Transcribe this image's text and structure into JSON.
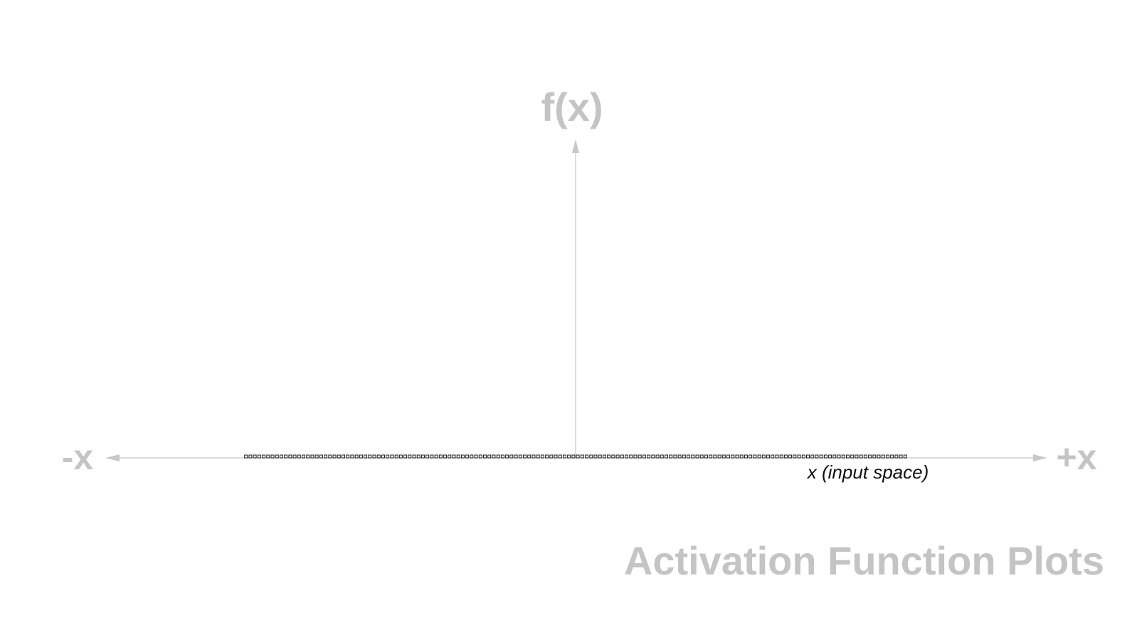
{
  "colors": {
    "axis": "#c8c8c8",
    "label": "#c4c4c4",
    "marker": "#1a1a1a",
    "caption": "#111111",
    "background": "#ffffff"
  },
  "chart_data": {
    "type": "scatter",
    "title": "Activation Function Plots",
    "ylabel": "f(x)",
    "xlabel": "x (input space)",
    "x_neg_label": "-x",
    "x_pos_label": "+x",
    "xlim": [
      -1.0,
      1.0
    ],
    "ylim": [
      0,
      1
    ],
    "grid": false,
    "legend": "none",
    "marker": "hollow-square",
    "series": [
      {
        "x_start": -0.81,
        "x_end": 0.81,
        "count": 150,
        "y": 0
      }
    ]
  }
}
